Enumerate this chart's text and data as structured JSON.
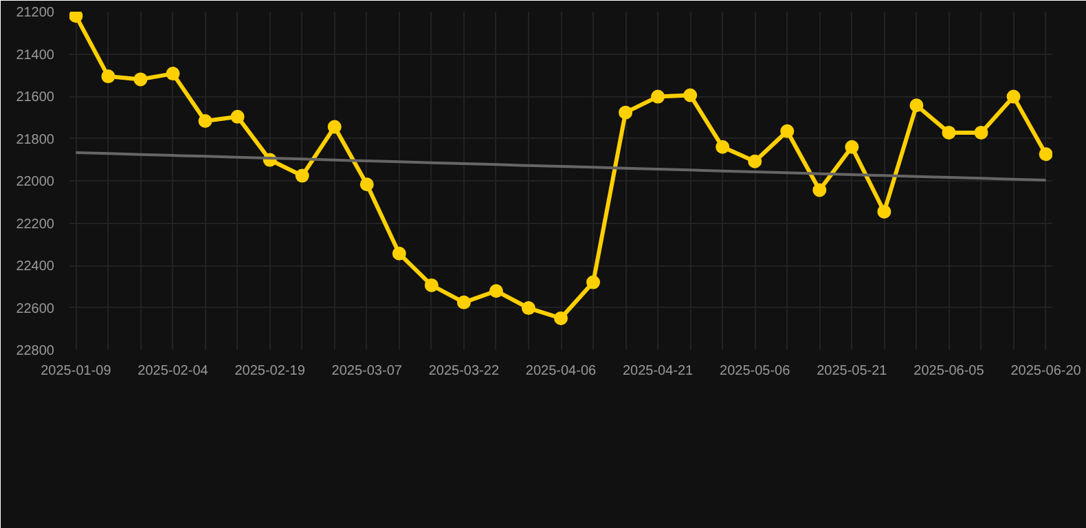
{
  "chart_data": {
    "type": "line",
    "categories": [
      "2025-01-09",
      null,
      null,
      "2025-02-04",
      null,
      null,
      "2025-02-19",
      null,
      null,
      "2025-03-07",
      null,
      null,
      "2025-03-22",
      null,
      null,
      "2025-04-06",
      null,
      null,
      "2025-04-21",
      null,
      null,
      "2025-05-06",
      null,
      null,
      "2025-05-21",
      null,
      null,
      "2025-06-05",
      null,
      null,
      "2025-06-20"
    ],
    "series": [
      {
        "color": "#ffd000",
        "marker": "circle",
        "values": [
          21220,
          21506,
          21520,
          21493,
          21717,
          21697,
          21901,
          21976,
          21745,
          22017,
          22344,
          22494,
          22575,
          22521,
          22602,
          22650,
          22480,
          21677,
          21602,
          21595,
          21840,
          21908,
          21765,
          22044,
          21840,
          22146,
          21643,
          21772,
          21772,
          21602,
          21874
        ]
      },
      {
        "type": "line",
        "color": "#666666",
        "marker": "none",
        "values": [
          21867,
          21871,
          21876,
          21880,
          21884,
          21889,
          21893,
          21897,
          21902,
          21906,
          21910,
          21915,
          21919,
          21923,
          21928,
          21932,
          21936,
          21941,
          21945,
          21949,
          21954,
          21958,
          21962,
          21967,
          21971,
          21975,
          21980,
          21984,
          21988,
          21993,
          21997
        ]
      }
    ],
    "ylim": [
      22800,
      21200
    ],
    "yticks": [
      21200,
      21400,
      21600,
      21800,
      22000,
      22200,
      22400,
      22600,
      22800
    ],
    "grid": true
  }
}
